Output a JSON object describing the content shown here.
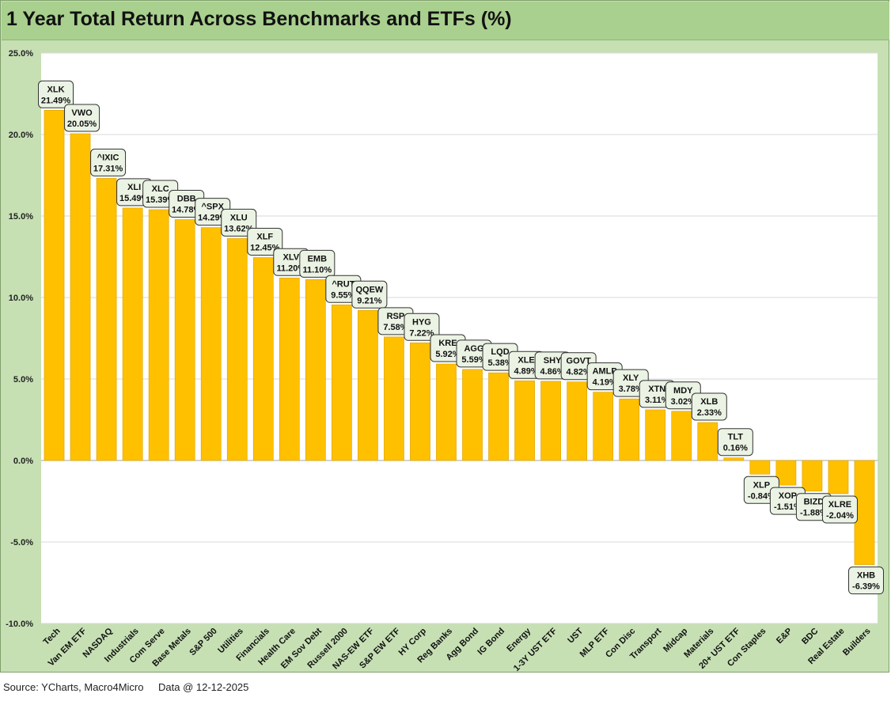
{
  "chart_data": {
    "type": "bar",
    "title": "1 Year Total Return Across Benchmarks and ETFs (%)",
    "xlabel": "",
    "ylabel": "",
    "ylim": [
      -10,
      25
    ],
    "ytick_values": [
      -10,
      -5,
      0,
      5,
      10,
      15,
      20,
      25
    ],
    "ytick_labels": [
      "-10.0%",
      "-5.0%",
      "0.0%",
      "5.0%",
      "10.0%",
      "15.0%",
      "20.0%",
      "25.0%"
    ],
    "grid": true,
    "legend": "none",
    "categories": [
      "Tech",
      "Van EM ETF",
      "NASDAQ",
      "Industrials",
      "Com Serve",
      "Base Metals",
      "S&P 500",
      "Utilities",
      "Financials",
      "Health Care",
      "EM Sov Debt",
      "Russell 2000",
      "NAS-EW ETF",
      "S&P EW ETF",
      "HY Corp",
      "Reg Banks",
      "Agg Bond",
      "IG Bond",
      "Energy",
      "1-3Y UST ETF",
      "UST",
      "MLP ETF",
      "Con Disc",
      "Transport",
      "Midcap",
      "Materials",
      "20+ UST ETF",
      "Con Staples",
      "E&P",
      "BDC",
      "Real Estate",
      "Builders"
    ],
    "tickers": [
      "XLK",
      "VWO",
      "^IXIC",
      "XLI",
      "XLC",
      "DBB",
      "^SPX",
      "XLU",
      "XLF",
      "XLV",
      "EMB",
      "^RUT",
      "QQEW",
      "RSP",
      "HYG",
      "KRE",
      "AGG",
      "LQD",
      "XLE",
      "SHY",
      "GOVT",
      "AMLP",
      "XLY",
      "XTN",
      "MDY",
      "XLB",
      "TLT",
      "XLP",
      "XOP",
      "BIZD",
      "XLRE",
      "XHB"
    ],
    "values": [
      21.49,
      20.05,
      17.31,
      15.49,
      15.39,
      14.78,
      14.29,
      13.62,
      12.45,
      11.2,
      11.1,
      9.55,
      9.21,
      7.58,
      7.22,
      5.92,
      5.59,
      5.38,
      4.89,
      4.86,
      4.82,
      4.19,
      3.78,
      3.11,
      3.02,
      2.33,
      0.16,
      -0.84,
      -1.51,
      -1.88,
      -2.04,
      -6.39
    ],
    "value_labels": [
      "21.49%",
      "20.05%",
      "17.31%",
      "15.49%",
      "15.39%",
      "14.78%",
      "14.29%",
      "13.62%",
      "12.45%",
      "11.20%",
      "11.10%",
      "9.55%",
      "9.21%",
      "7.58%",
      "7.22%",
      "5.92%",
      "5.59%",
      "5.38%",
      "4.89%",
      "4.86%",
      "4.82%",
      "4.19%",
      "3.78%",
      "3.11%",
      "3.02%",
      "2.33%",
      "0.16%",
      "-0.84%",
      "-1.51%",
      "-1.88%",
      "-2.04%",
      "-6.39%"
    ]
  },
  "colors": {
    "bar": "#ffc000",
    "bar_stroke": "#d9a000",
    "frame_bg": "#c6e0b4",
    "title_bg": "#a9d08e",
    "plot_bg": "#ffffff",
    "gridline": "#d9d9d9",
    "zero_line": "#a6a6a6",
    "label_box_bg": "#ebf3e4",
    "label_box_border": "#333333"
  },
  "footer": {
    "source": "Source: YCharts, Macro4Micro",
    "date": "Data @ 12-12-2025"
  }
}
